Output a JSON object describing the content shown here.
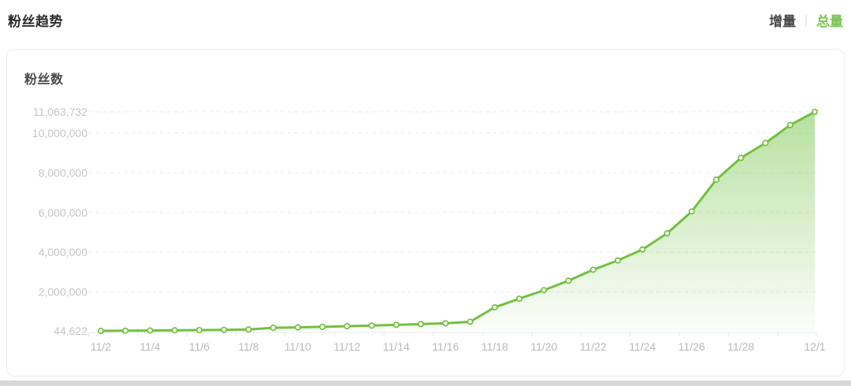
{
  "header": {
    "title": "粉丝趋势",
    "tabs": [
      {
        "label": "增量",
        "active": false
      },
      {
        "label": "总量",
        "active": true
      }
    ],
    "separator": "|"
  },
  "colors": {
    "line": "#72c040",
    "area_top": "#7dc752",
    "marker_fill": "#ffffff",
    "grid": "#ebebeb",
    "axis": "#e9e9e9",
    "y_label": "#c5c5c9",
    "x_label": "#b9b9be",
    "tab_active": "#7cc554"
  },
  "chart_data": {
    "type": "area",
    "title": "粉丝数",
    "x": [
      "11/2",
      "11/3",
      "11/4",
      "11/5",
      "11/6",
      "11/7",
      "11/8",
      "11/9",
      "11/10",
      "11/11",
      "11/12",
      "11/13",
      "11/14",
      "11/15",
      "11/16",
      "11/17",
      "11/18",
      "11/19",
      "11/20",
      "11/21",
      "11/22",
      "11/23",
      "11/24",
      "11/25",
      "11/26",
      "11/27",
      "11/28",
      "11/29",
      "11/30",
      "12/1"
    ],
    "values": [
      44622,
      52000,
      61000,
      72000,
      85000,
      98000,
      115000,
      200000,
      220000,
      245000,
      280000,
      310000,
      345000,
      385000,
      425000,
      500000,
      1230000,
      1660000,
      2090000,
      2570000,
      3120000,
      3590000,
      4140000,
      4950000,
      6050000,
      7650000,
      8750000,
      9500000,
      10400000,
      11063732
    ],
    "ylim": [
      44622,
      11063732
    ],
    "y_ticks": [
      {
        "label": "44,622",
        "value": 44622
      },
      {
        "label": "2,000,000",
        "value": 2000000
      },
      {
        "label": "4,000,000",
        "value": 4000000
      },
      {
        "label": "6,000,000",
        "value": 6000000
      },
      {
        "label": "8,000,000",
        "value": 8000000
      },
      {
        "label": "10,000,000",
        "value": 10000000
      },
      {
        "label": "11,063,732",
        "value": 11063732
      }
    ],
    "x_ticks": [
      {
        "index": 0,
        "label": "11/2"
      },
      {
        "index": 2,
        "label": "11/4"
      },
      {
        "index": 4,
        "label": "11/6"
      },
      {
        "index": 6,
        "label": "11/8"
      },
      {
        "index": 8,
        "label": "11/10"
      },
      {
        "index": 10,
        "label": "11/12"
      },
      {
        "index": 12,
        "label": "11/14"
      },
      {
        "index": 14,
        "label": "11/16"
      },
      {
        "index": 16,
        "label": "11/18"
      },
      {
        "index": 18,
        "label": "11/20"
      },
      {
        "index": 20,
        "label": "11/22"
      },
      {
        "index": 22,
        "label": "11/24"
      },
      {
        "index": 24,
        "label": "11/26"
      },
      {
        "index": 26,
        "label": "11/28"
      },
      {
        "index": 29,
        "label": "12/1"
      }
    ],
    "grid": "horizontal-dashed",
    "legend": "none"
  }
}
